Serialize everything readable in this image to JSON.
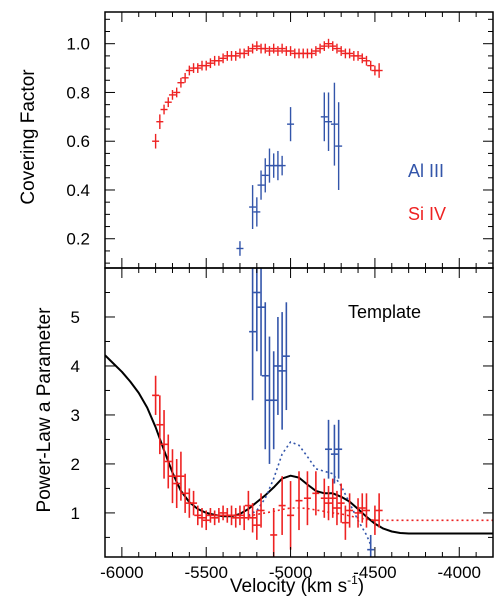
{
  "colors": {
    "al_iii": "#3355aa",
    "si_iv": "#ee2222",
    "template": "#000000"
  },
  "chart_data": [
    {
      "type": "scatter",
      "panel": "top",
      "ylabel": "Covering Factor",
      "xlim": [
        -6100,
        -3800
      ],
      "ylim": [
        0.08,
        1.13
      ],
      "yticks": [
        0.2,
        0.4,
        0.6,
        0.8,
        1.0
      ],
      "ytick_labels": [
        "0.2",
        "0.4",
        "0.6",
        "0.8",
        "1.0"
      ],
      "legend": [
        "Al III",
        "Si IV"
      ],
      "legend_placement": "right",
      "series": [
        {
          "name": "Si IV",
          "points": [
            [
              -5800,
              0.6,
              0.03
            ],
            [
              -5775,
              0.68,
              0.03
            ],
            [
              -5750,
              0.73,
              0.02
            ],
            [
              -5725,
              0.76,
              0.02
            ],
            [
              -5700,
              0.79,
              0.02
            ],
            [
              -5675,
              0.8,
              0.02
            ],
            [
              -5650,
              0.84,
              0.02
            ],
            [
              -5625,
              0.86,
              0.02
            ],
            [
              -5600,
              0.89,
              0.02
            ],
            [
              -5575,
              0.9,
              0.02
            ],
            [
              -5550,
              0.9,
              0.02
            ],
            [
              -5525,
              0.91,
              0.02
            ],
            [
              -5500,
              0.91,
              0.02
            ],
            [
              -5475,
              0.92,
              0.02
            ],
            [
              -5450,
              0.93,
              0.02
            ],
            [
              -5425,
              0.93,
              0.02
            ],
            [
              -5400,
              0.94,
              0.02
            ],
            [
              -5375,
              0.95,
              0.02
            ],
            [
              -5350,
              0.95,
              0.02
            ],
            [
              -5325,
              0.95,
              0.02
            ],
            [
              -5300,
              0.96,
              0.02
            ],
            [
              -5275,
              0.96,
              0.02
            ],
            [
              -5250,
              0.97,
              0.02
            ],
            [
              -5225,
              0.98,
              0.02
            ],
            [
              -5200,
              0.99,
              0.02
            ],
            [
              -5175,
              0.98,
              0.02
            ],
            [
              -5150,
              0.98,
              0.02
            ],
            [
              -5125,
              0.97,
              0.02
            ],
            [
              -5100,
              0.98,
              0.02
            ],
            [
              -5075,
              0.97,
              0.02
            ],
            [
              -5050,
              0.98,
              0.02
            ],
            [
              -5025,
              0.97,
              0.02
            ],
            [
              -5000,
              0.97,
              0.02
            ],
            [
              -4975,
              0.96,
              0.02
            ],
            [
              -4950,
              0.96,
              0.02
            ],
            [
              -4925,
              0.96,
              0.02
            ],
            [
              -4900,
              0.96,
              0.02
            ],
            [
              -4875,
              0.96,
              0.02
            ],
            [
              -4850,
              0.97,
              0.02
            ],
            [
              -4825,
              0.98,
              0.02
            ],
            [
              -4800,
              0.99,
              0.02
            ],
            [
              -4775,
              1.0,
              0.02
            ],
            [
              -4750,
              0.99,
              0.02
            ],
            [
              -4725,
              0.98,
              0.02
            ],
            [
              -4700,
              0.97,
              0.02
            ],
            [
              -4675,
              0.96,
              0.02
            ],
            [
              -4650,
              0.96,
              0.02
            ],
            [
              -4625,
              0.95,
              0.02
            ],
            [
              -4600,
              0.95,
              0.02
            ],
            [
              -4575,
              0.94,
              0.02
            ],
            [
              -4550,
              0.93,
              0.02
            ],
            [
              -4525,
              0.91,
              0.02
            ],
            [
              -4500,
              0.89,
              0.02
            ],
            [
              -4475,
              0.89,
              0.03
            ]
          ]
        },
        {
          "name": "Al III",
          "points": [
            [
              -5300,
              0.16,
              0.03
            ],
            [
              -5225,
              0.33,
              0.09
            ],
            [
              -5200,
              0.31,
              0.06
            ],
            [
              -5175,
              0.42,
              0.06
            ],
            [
              -5150,
              0.46,
              0.07
            ],
            [
              -5125,
              0.5,
              0.07
            ],
            [
              -5100,
              0.5,
              0.05
            ],
            [
              -5075,
              0.5,
              0.06
            ],
            [
              -5050,
              0.5,
              0.04
            ],
            [
              -5000,
              0.67,
              0.07
            ],
            [
              -4800,
              0.7,
              0.1
            ],
            [
              -4775,
              0.68,
              0.12
            ],
            [
              -4740,
              0.67,
              0.17
            ],
            [
              -4715,
              0.58,
              0.18
            ]
          ]
        }
      ]
    },
    {
      "type": "line",
      "panel": "bottom",
      "xlabel": "Velocity (km s^-1)",
      "xlabel_main": "Velocity (km s",
      "xlabel_sup": "-1",
      "xlabel_tail": ")",
      "ylabel": "Power-Law a Parameter",
      "xlim": [
        -6100,
        -3800
      ],
      "ylim": [
        0.1,
        6.0
      ],
      "xticks": [
        -6000,
        -5500,
        -5000,
        -4500,
        -4000
      ],
      "xtick_labels": [
        "-6000",
        "-5500",
        "-5000",
        "-4500",
        "-4000"
      ],
      "yticks": [
        1,
        2,
        3,
        4,
        5
      ],
      "ytick_labels": [
        "1",
        "2",
        "3",
        "4",
        "5"
      ],
      "annotation": "Template",
      "series": [
        {
          "name": "Template",
          "style": "solid",
          "points": [
            [
              -6100,
              4.22
            ],
            [
              -6050,
              4.05
            ],
            [
              -6000,
              3.88
            ],
            [
              -5950,
              3.68
            ],
            [
              -5900,
              3.45
            ],
            [
              -5850,
              3.15
            ],
            [
              -5800,
              2.75
            ],
            [
              -5750,
              2.28
            ],
            [
              -5700,
              1.82
            ],
            [
              -5650,
              1.45
            ],
            [
              -5600,
              1.22
            ],
            [
              -5550,
              1.08
            ],
            [
              -5500,
              1.0
            ],
            [
              -5450,
              0.96
            ],
            [
              -5400,
              0.93
            ],
            [
              -5350,
              0.93
            ],
            [
              -5300,
              0.98
            ],
            [
              -5250,
              1.08
            ],
            [
              -5200,
              1.22
            ],
            [
              -5150,
              1.36
            ],
            [
              -5100,
              1.52
            ],
            [
              -5050,
              1.7
            ],
            [
              -5000,
              1.76
            ],
            [
              -4950,
              1.72
            ],
            [
              -4900,
              1.58
            ],
            [
              -4850,
              1.45
            ],
            [
              -4800,
              1.4
            ],
            [
              -4750,
              1.4
            ],
            [
              -4700,
              1.33
            ],
            [
              -4650,
              1.23
            ],
            [
              -4600,
              1.08
            ],
            [
              -4550,
              0.92
            ],
            [
              -4500,
              0.78
            ],
            [
              -4450,
              0.68
            ],
            [
              -4400,
              0.62
            ],
            [
              -4350,
              0.59
            ],
            [
              -4300,
              0.58
            ],
            [
              -4200,
              0.58
            ],
            [
              -4000,
              0.58
            ],
            [
              -3800,
              0.58
            ]
          ]
        },
        {
          "name": "Al III model",
          "style": "dotted",
          "points": [
            [
              -5250,
              0.95
            ],
            [
              -5200,
              1.05
            ],
            [
              -5150,
              1.3
            ],
            [
              -5100,
              1.7
            ],
            [
              -5050,
              2.2
            ],
            [
              -5000,
              2.45
            ],
            [
              -4950,
              2.38
            ],
            [
              -4900,
              2.15
            ],
            [
              -4850,
              1.9
            ],
            [
              -4800,
              1.85
            ],
            [
              -4750,
              1.8
            ],
            [
              -4700,
              1.55
            ],
            [
              -4650,
              1.2
            ],
            [
              -4600,
              0.85
            ],
            [
              -4550,
              0.55
            ],
            [
              -4525,
              0.35
            ]
          ]
        },
        {
          "name": "Si IV model",
          "style": "dotted",
          "points": [
            [
              -5250,
              0.93
            ],
            [
              -5200,
              0.97
            ],
            [
              -5150,
              1.0
            ],
            [
              -5100,
              1.03
            ],
            [
              -5050,
              1.07
            ],
            [
              -5000,
              1.1
            ],
            [
              -4950,
              1.1
            ],
            [
              -4900,
              1.09
            ],
            [
              -4850,
              1.06
            ],
            [
              -4800,
              1.03
            ],
            [
              -4750,
              1.0
            ],
            [
              -4700,
              0.98
            ],
            [
              -4650,
              0.94
            ],
            [
              -4600,
              0.9
            ],
            [
              -4550,
              0.87
            ],
            [
              -4500,
              0.85
            ],
            [
              -4400,
              0.85
            ],
            [
              -4200,
              0.85
            ],
            [
              -4000,
              0.85
            ],
            [
              -3800,
              0.85
            ]
          ]
        },
        {
          "name": "Si IV",
          "style": "errorbars",
          "points": [
            [
              -5800,
              3.4,
              0.4
            ],
            [
              -5775,
              2.8,
              0.6
            ],
            [
              -5750,
              2.4,
              0.7
            ],
            [
              -5725,
              2.05,
              0.55
            ],
            [
              -5700,
              1.75,
              0.55
            ],
            [
              -5675,
              1.6,
              0.5
            ],
            [
              -5650,
              1.75,
              0.5
            ],
            [
              -5625,
              1.4,
              0.4
            ],
            [
              -5600,
              1.2,
              0.3
            ],
            [
              -5575,
              1.2,
              0.25
            ],
            [
              -5550,
              0.95,
              0.2
            ],
            [
              -5525,
              0.9,
              0.2
            ],
            [
              -5500,
              0.85,
              0.2
            ],
            [
              -5475,
              0.95,
              0.15
            ],
            [
              -5450,
              0.9,
              0.15
            ],
            [
              -5425,
              0.95,
              0.15
            ],
            [
              -5400,
              1.0,
              0.15
            ],
            [
              -5375,
              0.95,
              0.15
            ],
            [
              -5350,
              0.95,
              0.2
            ],
            [
              -5325,
              0.9,
              0.2
            ],
            [
              -5300,
              0.95,
              0.2
            ],
            [
              -5275,
              0.9,
              0.25
            ],
            [
              -5250,
              1.15,
              0.3
            ],
            [
              -5225,
              0.9,
              0.3
            ],
            [
              -5200,
              0.75,
              0.3
            ],
            [
              -5175,
              1.05,
              0.35
            ],
            [
              -5100,
              0.55,
              0.55
            ],
            [
              -5050,
              1.15,
              0.6
            ],
            [
              -5000,
              0.95,
              0.7
            ],
            [
              -4950,
              1.25,
              0.6
            ],
            [
              -4900,
              1.3,
              0.55
            ],
            [
              -4850,
              1.4,
              0.45
            ],
            [
              -4800,
              1.3,
              0.4
            ],
            [
              -4775,
              1.2,
              0.35
            ],
            [
              -4750,
              1.3,
              0.4
            ],
            [
              -4725,
              1.1,
              0.35
            ],
            [
              -4700,
              1.2,
              0.4
            ],
            [
              -4675,
              0.8,
              0.35
            ],
            [
              -4650,
              1.05,
              0.35
            ],
            [
              -4600,
              1.0,
              0.3
            ],
            [
              -4575,
              1.1,
              0.3
            ],
            [
              -4550,
              1.05,
              0.35
            ],
            [
              -4500,
              0.85,
              0.3
            ],
            [
              -4475,
              1.05,
              0.35
            ]
          ]
        },
        {
          "name": "Al III",
          "style": "errorbars",
          "points": [
            [
              -5225,
              4.7,
              1.4
            ],
            [
              -5200,
              5.5,
              1.2
            ],
            [
              -5175,
              5.2,
              1.4
            ],
            [
              -5150,
              3.8,
              1.5
            ],
            [
              -5125,
              3.3,
              1.3
            ],
            [
              -5100,
              3.3,
              1.0
            ],
            [
              -5075,
              4.0,
              1.0
            ],
            [
              -5050,
              3.9,
              1.2
            ],
            [
              -5025,
              4.2,
              1.1
            ],
            [
              -4775,
              2.3,
              0.6
            ],
            [
              -4740,
              2.2,
              0.6
            ],
            [
              -4715,
              2.3,
              0.6
            ],
            [
              -4525,
              0.25,
              0.3
            ]
          ]
        }
      ]
    }
  ]
}
